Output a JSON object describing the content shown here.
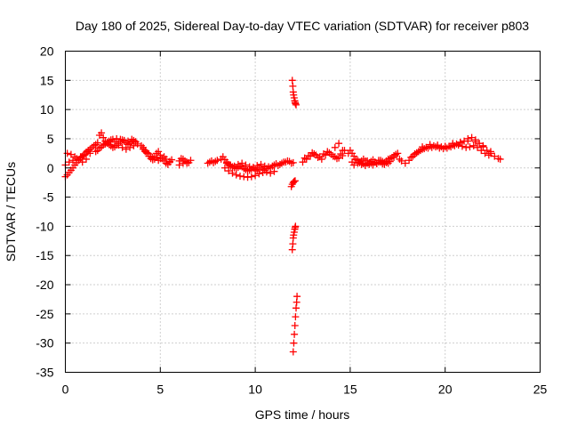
{
  "chart_data": {
    "type": "scatter",
    "title": "Day 180 of 2025, Sidereal Day-to-day VTEC variation (SDTVAR) for receiver p803",
    "xlabel": "GPS time / hours",
    "ylabel": "SDTVAR / TECUs",
    "xlim": [
      0,
      25
    ],
    "ylim": [
      -35,
      20
    ],
    "xticks": [
      0,
      5,
      10,
      15,
      20,
      25
    ],
    "yticks": [
      20,
      15,
      10,
      5,
      0,
      -5,
      -10,
      -15,
      -20,
      -25,
      -30,
      -35
    ],
    "grid": true,
    "marker": "+",
    "color": "#ff0000",
    "series": [
      {
        "name": "SDTVAR",
        "x": [
          0.0,
          0.1,
          0.2,
          0.3,
          0.4,
          0.5,
          0.6,
          0.7,
          0.8,
          0.9,
          1.0,
          1.1,
          1.2,
          1.3,
          0.1,
          0.3,
          0.5,
          0.7,
          0.9,
          1.1,
          1.3,
          0.0,
          0.2,
          0.4,
          0.6,
          0.8,
          1.0,
          1.2,
          1.4,
          1.5,
          1.6,
          1.7,
          1.8,
          1.9,
          2.0,
          2.1,
          2.2,
          2.3,
          2.4,
          2.5,
          2.6,
          2.7,
          2.8,
          2.9,
          3.0,
          3.1,
          3.2,
          3.3,
          3.4,
          3.5,
          3.6,
          3.7,
          3.8,
          1.6,
          1.7,
          1.8,
          1.9,
          2.0,
          2.1,
          2.2,
          2.4,
          2.6,
          2.8,
          3.0,
          3.2,
          3.4,
          3.6,
          2.3,
          2.5,
          2.7,
          2.9,
          3.1,
          3.3,
          3.5,
          3.7,
          4.0,
          4.1,
          4.2,
          4.3,
          4.4,
          4.5,
          4.6,
          4.7,
          4.8,
          4.9,
          5.0,
          5.1,
          5.2,
          5.3,
          5.4,
          5.5,
          5.6,
          4.1,
          4.3,
          4.5,
          4.7,
          4.9,
          5.1,
          5.3,
          5.5,
          4.2,
          4.4,
          4.6,
          4.8,
          5.0,
          5.2,
          6.0,
          6.1,
          6.2,
          6.3,
          6.4,
          6.5,
          6.0,
          6.2,
          6.4,
          6.6,
          7.5,
          7.6,
          7.7,
          7.8,
          7.9,
          8.0,
          8.2,
          8.3,
          8.4,
          8.5,
          8.6,
          8.7,
          8.8,
          8.9,
          9.0,
          9.1,
          9.2,
          9.3,
          9.4,
          9.5,
          9.6,
          9.7,
          9.8,
          9.9,
          10.0,
          10.1,
          10.2,
          10.3,
          10.4,
          10.5,
          10.6,
          10.7,
          10.8,
          10.9,
          11.0,
          11.1,
          11.2,
          11.3,
          11.4,
          11.5,
          11.6,
          11.7,
          11.8,
          11.9,
          12.0,
          8.4,
          8.6,
          8.8,
          9.0,
          9.2,
          9.4,
          9.6,
          9.8,
          10.0,
          10.2,
          10.4,
          10.6,
          10.8,
          11.0,
          8.5,
          8.7,
          8.9,
          9.1,
          9.3,
          9.5,
          9.7,
          9.9,
          10.1,
          10.3,
          10.5,
          11.95,
          11.98,
          12.0,
          12.02,
          12.05,
          12.08,
          12.1,
          12.12,
          12.15,
          11.9,
          11.95,
          12.0,
          12.05,
          12.1,
          11.95,
          11.98,
          12.0,
          12.02,
          12.05,
          12.08,
          12.1,
          12.12,
          12.0,
          12.03,
          12.06,
          12.09,
          12.12,
          12.15,
          12.18,
          12.2,
          12.5,
          12.7,
          12.9,
          13.1,
          13.3,
          13.5,
          13.7,
          13.9,
          14.1,
          14.3,
          14.5,
          14.7,
          14.9,
          12.6,
          12.8,
          13.0,
          13.2,
          13.4,
          13.6,
          13.8,
          14.0,
          14.2,
          14.4,
          14.6,
          14.2,
          14.4,
          14.6,
          15.0,
          15.1,
          15.2,
          15.3,
          15.4,
          15.5,
          15.6,
          15.7,
          15.8,
          15.9,
          16.0,
          16.1,
          16.2,
          16.3,
          16.4,
          16.5,
          16.6,
          16.7,
          16.8,
          16.9,
          17.0,
          17.1,
          17.2,
          17.3,
          17.4,
          17.5,
          15.1,
          15.3,
          15.5,
          15.7,
          15.9,
          16.1,
          16.3,
          16.5,
          16.7,
          16.9,
          17.1,
          17.3,
          15.2,
          15.4,
          15.6,
          15.8,
          16.0,
          16.2,
          16.4,
          16.6,
          16.8,
          17.0,
          17.6,
          17.7,
          17.9,
          18.1,
          18.2,
          18.4,
          18.6,
          18.8,
          19.0,
          19.2,
          19.4,
          19.6,
          19.8,
          20.0,
          20.2,
          20.4,
          20.6,
          20.8,
          21.0,
          21.2,
          21.4,
          21.6,
          21.8,
          22.0,
          22.2,
          22.4,
          22.6,
          22.8,
          18.3,
          18.5,
          18.7,
          18.9,
          19.1,
          19.3,
          19.5,
          19.7,
          19.9,
          20.1,
          20.3,
          20.5,
          20.7,
          20.9,
          21.1,
          21.3,
          21.5,
          21.7,
          21.9,
          22.1,
          22.3,
          18.4,
          18.8,
          19.2,
          19.6,
          20.0,
          20.4,
          20.8,
          21.2,
          21.6,
          22.0,
          22.4,
          22.9
        ],
        "y": [
          -1.5,
          -1.2,
          -0.8,
          -0.4,
          0.0,
          0.5,
          0.9,
          1.3,
          1.7,
          2.0,
          2.4,
          2.7,
          3.0,
          3.2,
          2.5,
          2.3,
          1.9,
          1.4,
          1.0,
          1.5,
          2.5,
          0.5,
          1.0,
          1.3,
          1.6,
          1.9,
          2.2,
          2.8,
          3.5,
          3.8,
          4.0,
          4.3,
          5.6,
          6.0,
          5.2,
          4.6,
          4.2,
          4.0,
          3.8,
          3.5,
          3.6,
          3.9,
          4.2,
          4.5,
          4.8,
          4.6,
          4.3,
          4.0,
          4.2,
          4.5,
          4.7,
          4.4,
          4.1,
          2.8,
          3.0,
          3.4,
          3.6,
          3.9,
          4.1,
          4.4,
          4.8,
          4.5,
          3.9,
          3.5,
          3.2,
          3.5,
          3.8,
          4.6,
          4.9,
          5.0,
          4.9,
          4.7,
          4.6,
          4.9,
          4.5,
          3.8,
          3.5,
          3.0,
          2.5,
          2.0,
          1.6,
          1.4,
          1.9,
          2.5,
          2.8,
          2.2,
          1.6,
          1.2,
          0.8,
          0.6,
          1.0,
          1.4,
          3.2,
          2.6,
          2.0,
          1.5,
          1.3,
          1.6,
          1.5,
          1.1,
          2.8,
          2.4,
          1.8,
          1.8,
          1.6,
          1.9,
          1.2,
          1.6,
          1.5,
          1.2,
          0.8,
          0.9,
          0.5,
          0.8,
          1.0,
          1.3,
          0.8,
          1.0,
          1.2,
          0.9,
          1.1,
          1.3,
          1.5,
          1.9,
          1.4,
          1.0,
          0.6,
          0.3,
          0.2,
          0.0,
          -0.1,
          0.1,
          0.3,
          0.2,
          -0.1,
          -0.3,
          -0.5,
          -0.4,
          -0.2,
          0.0,
          -0.3,
          -0.5,
          -0.2,
          0.1,
          -0.2,
          -0.4,
          -0.1,
          0.2,
          0.0,
          0.3,
          0.5,
          0.7,
          0.4,
          0.6,
          0.8,
          1.0,
          1.0,
          1.2,
          1.1,
          0.8,
          0.9,
          0.0,
          -0.5,
          -0.9,
          -1.2,
          -1.4,
          -1.5,
          -1.6,
          -1.5,
          -1.3,
          -1.0,
          -0.8,
          -0.7,
          -0.9,
          -0.6,
          0.8,
          0.5,
          0.3,
          0.6,
          0.8,
          0.5,
          0.2,
          0.1,
          0.4,
          0.6,
          0.3,
          15.0,
          14.0,
          13.0,
          12.5,
          12.0,
          11.5,
          11.2,
          11.0,
          10.8,
          -3.2,
          -2.8,
          -2.5,
          -2.3,
          -2.2,
          -14.0,
          -13.0,
          -12.0,
          -11.5,
          -11.0,
          -10.5,
          -10.2,
          -10.0,
          -31.5,
          -30.0,
          -28.5,
          -27.0,
          -25.5,
          -24.0,
          -23.0,
          -22.0,
          1.0,
          1.5,
          2.0,
          2.4,
          1.8,
          1.5,
          2.2,
          2.6,
          2.0,
          1.6,
          2.4,
          3.0,
          2.5,
          1.7,
          2.1,
          2.6,
          2.2,
          1.9,
          2.4,
          2.8,
          2.3,
          1.9,
          1.7,
          2.1,
          3.5,
          4.2,
          3.0,
          3.0,
          2.5,
          2.0,
          1.5,
          1.3,
          1.0,
          1.2,
          1.5,
          1.2,
          0.8,
          0.9,
          1.1,
          1.4,
          1.0,
          0.8,
          1.0,
          1.3,
          1.1,
          0.9,
          1.2,
          1.5,
          1.6,
          1.8,
          2.1,
          2.3,
          2.5,
          1.0,
          1.4,
          0.9,
          0.7,
          1.2,
          0.8,
          1.0,
          1.3,
          0.7,
          0.9,
          1.1,
          1.8,
          0.5,
          0.8,
          0.6,
          0.4,
          0.6,
          0.5,
          0.7,
          1.0,
          0.6,
          0.8,
          1.5,
          1.2,
          0.8,
          1.3,
          1.8,
          2.3,
          2.8,
          3.2,
          3.5,
          3.7,
          3.8,
          3.7,
          3.6,
          3.6,
          3.7,
          3.9,
          4.1,
          4.3,
          4.6,
          5.0,
          5.2,
          4.8,
          4.2,
          3.6,
          3.0,
          2.5,
          2.0,
          1.6,
          2.0,
          2.6,
          3.0,
          3.3,
          3.4,
          3.5,
          3.6,
          3.4,
          3.3,
          3.4,
          3.6,
          3.8,
          3.9,
          3.7,
          3.5,
          3.6,
          3.8,
          3.5,
          3.0,
          2.5,
          2.2,
          2.4,
          3.6,
          4.0,
          3.9,
          3.7,
          4.2,
          4.4,
          4.6,
          4.5,
          3.8,
          2.8,
          1.5
        ]
      }
    ]
  }
}
